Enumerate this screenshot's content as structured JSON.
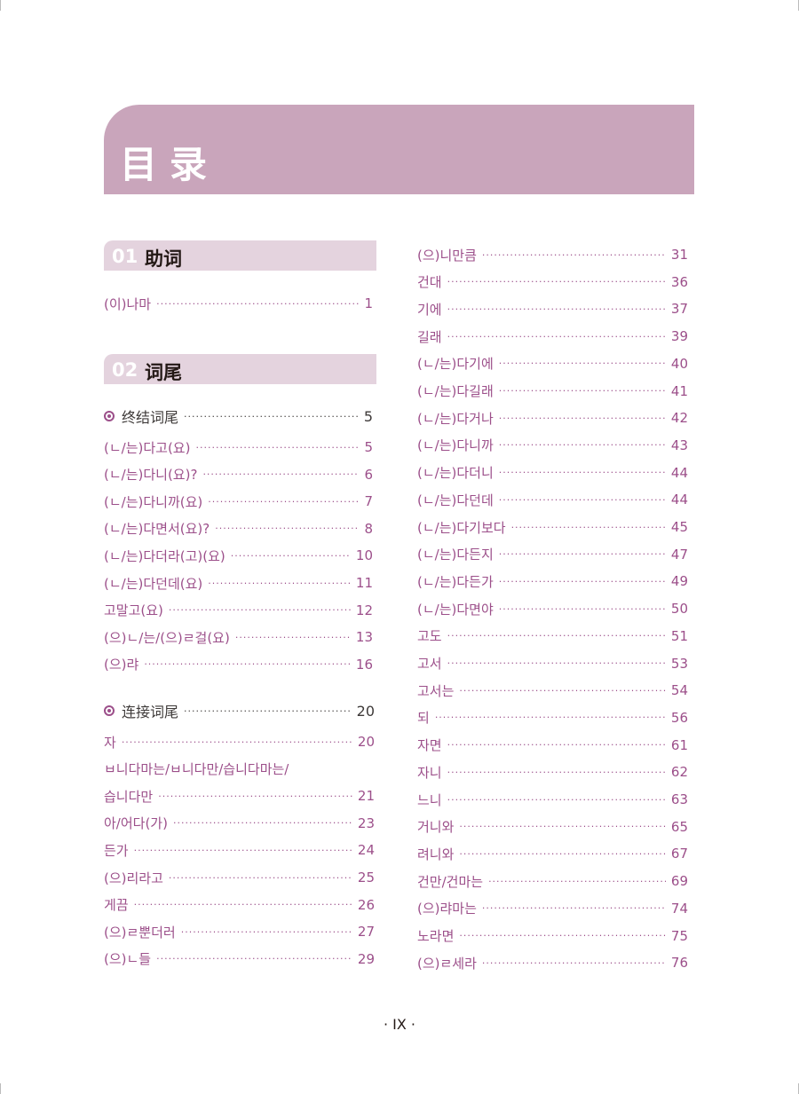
{
  "title": "目录",
  "sections": [
    {
      "num": "01",
      "title": "助词"
    },
    {
      "num": "02",
      "title": "词尾"
    }
  ],
  "particles": [
    {
      "label": "(이)나마",
      "page": "1"
    }
  ],
  "final_category": {
    "label": "终结词尾",
    "page": "5"
  },
  "final_endings": [
    {
      "label": "(ㄴ/는)다고(요)",
      "page": "5"
    },
    {
      "label": "(ㄴ/는)다니(요)?",
      "page": "6"
    },
    {
      "label": "(ㄴ/는)다니까(요)",
      "page": "7"
    },
    {
      "label": "(ㄴ/는)다면서(요)?",
      "page": "8"
    },
    {
      "label": "(ㄴ/는)다더라(고)(요)",
      "page": "10"
    },
    {
      "label": "(ㄴ/는)다던데(요)",
      "page": "11"
    },
    {
      "label": "고말고(요)",
      "page": "12"
    },
    {
      "label": "(으)ㄴ/는/(으)ㄹ걸(요)",
      "page": "13"
    },
    {
      "label": "(으)랴",
      "page": "16"
    }
  ],
  "connective_category": {
    "label": "连接词尾",
    "page": "20"
  },
  "connective_endings": [
    {
      "label": "자",
      "page": "20"
    },
    {
      "label": "ㅂ니다마는/ㅂ니다만/습니다마는/",
      "page": ""
    },
    {
      "label": "습니다만",
      "page": "21"
    },
    {
      "label": "아/어다(가)",
      "page": "23"
    },
    {
      "label": "든가",
      "page": "24"
    },
    {
      "label": "(으)리라고",
      "page": "25"
    },
    {
      "label": "게끔",
      "page": "26"
    },
    {
      "label": "(으)ㄹ뿐더러",
      "page": "27"
    },
    {
      "label": "(으)ㄴ들",
      "page": "29"
    }
  ],
  "right_column": [
    {
      "label": "(으)니만큼",
      "page": "31"
    },
    {
      "label": "건대",
      "page": "36"
    },
    {
      "label": "기에",
      "page": "37"
    },
    {
      "label": "길래",
      "page": "39"
    },
    {
      "label": "(ㄴ/는)다기에",
      "page": "40"
    },
    {
      "label": "(ㄴ/는)다길래",
      "page": "41"
    },
    {
      "label": "(ㄴ/는)다거나",
      "page": "42"
    },
    {
      "label": "(ㄴ/는)다니까",
      "page": "43"
    },
    {
      "label": "(ㄴ/는)다더니",
      "page": "44"
    },
    {
      "label": "(ㄴ/는)다던데",
      "page": "44"
    },
    {
      "label": "(ㄴ/는)다기보다",
      "page": "45"
    },
    {
      "label": "(ㄴ/는)다든지",
      "page": "47"
    },
    {
      "label": "(ㄴ/는)다든가",
      "page": "49"
    },
    {
      "label": "(ㄴ/는)다면야",
      "page": "50"
    },
    {
      "label": "고도",
      "page": "51"
    },
    {
      "label": "고서",
      "page": "53"
    },
    {
      "label": "고서는",
      "page": "54"
    },
    {
      "label": "되",
      "page": "56"
    },
    {
      "label": "자면",
      "page": "61"
    },
    {
      "label": "자니",
      "page": "62"
    },
    {
      "label": "느니",
      "page": "63"
    },
    {
      "label": "거니와",
      "page": "65"
    },
    {
      "label": "려니와",
      "page": "67"
    },
    {
      "label": "건만/건마는",
      "page": "69"
    },
    {
      "label": "(으)랴마는",
      "page": "74"
    },
    {
      "label": "노라면",
      "page": "75"
    },
    {
      "label": "(으)ㄹ세라",
      "page": "76"
    }
  ],
  "footer": "·   IX   ·"
}
